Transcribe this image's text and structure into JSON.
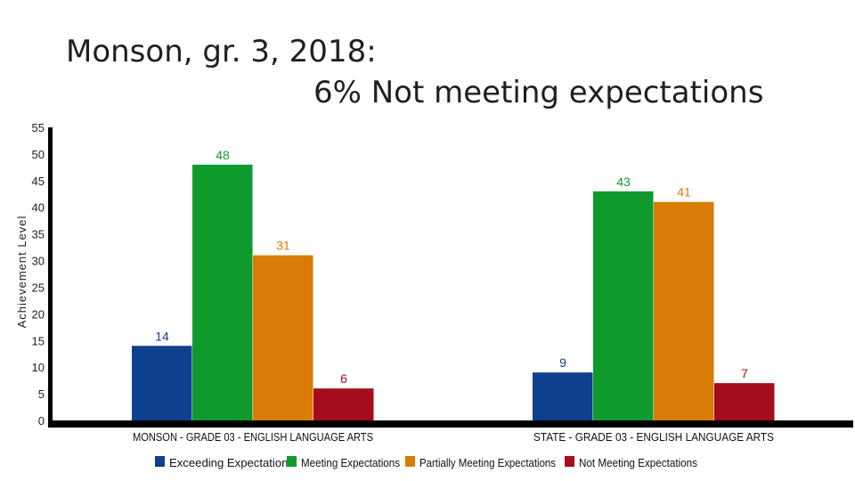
{
  "page": {
    "title_line1": "Monson, gr. 3, 2018:",
    "title_line2": "6% Not meeting expectations"
  },
  "chart_data": {
    "type": "bar",
    "categories": [
      "MONSON - GRADE 03 - ENGLISH LANGUAGE ARTS",
      "STATE - GRADE 03 - ENGLISH LANGUAGE ARTS"
    ],
    "series": [
      {
        "name": "Exceeding Expectations",
        "values": [
          14,
          9
        ],
        "color": "#0f3f8f"
      },
      {
        "name": "Meeting Expectations",
        "values": [
          48,
          43
        ],
        "color": "#0e9a2c"
      },
      {
        "name": "Partially Meeting Expectations",
        "values": [
          31,
          41
        ],
        "color": "#d97c06"
      },
      {
        "name": "Not Meeting Expectations",
        "values": [
          6,
          7
        ],
        "color": "#a50d1e"
      }
    ],
    "ylabel": "Achievement Level",
    "xlabel": "",
    "ylim": [
      0,
      55
    ],
    "yticks": [
      0,
      5,
      10,
      15,
      20,
      25,
      30,
      35,
      40,
      45,
      50,
      55
    ],
    "legend_position": "bottom",
    "data_labels": true,
    "grid": false
  }
}
